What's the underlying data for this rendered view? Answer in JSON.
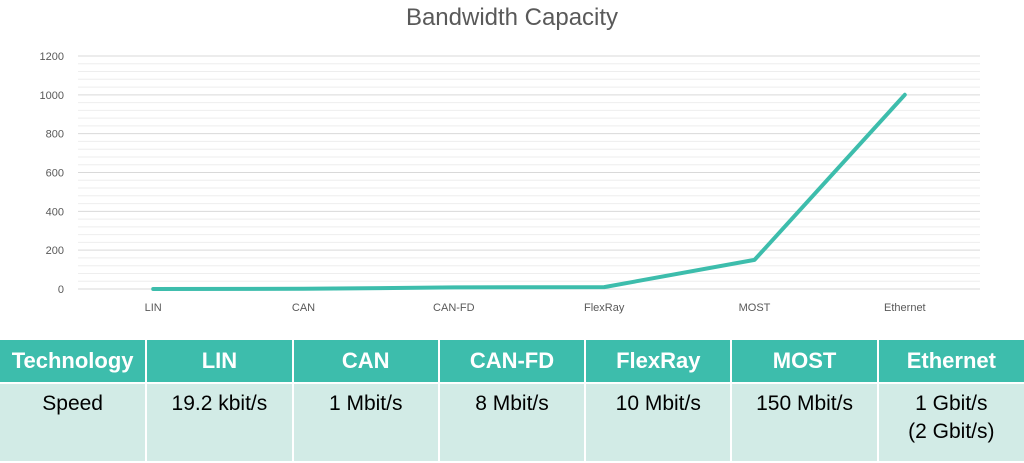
{
  "chart_data": {
    "type": "line",
    "title": "Bandwidth Capacity",
    "categories": [
      "LIN",
      "CAN",
      "CAN-FD",
      "FlexRay",
      "MOST",
      "Ethernet"
    ],
    "series": [
      {
        "values": [
          0.0192,
          1,
          8,
          10,
          150,
          1000
        ]
      }
    ],
    "ylim": [
      0,
      1200
    ],
    "yticks": [
      0,
      200,
      400,
      600,
      800,
      1000,
      1200
    ],
    "gridlines": true,
    "legend": "none",
    "line_color": "#3dbdac"
  },
  "table": {
    "headers": [
      "Technology",
      "LIN",
      "CAN",
      "CAN-FD",
      "FlexRay",
      "MOST",
      "Ethernet"
    ],
    "row_label": "Speed",
    "speeds": [
      "19.2 kbit/s",
      "1 Mbit/s",
      "8 Mbit/s",
      "10 Mbit/s",
      "150 Mbit/s",
      "1 Gbit/s\n(2 Gbit/s)"
    ]
  }
}
